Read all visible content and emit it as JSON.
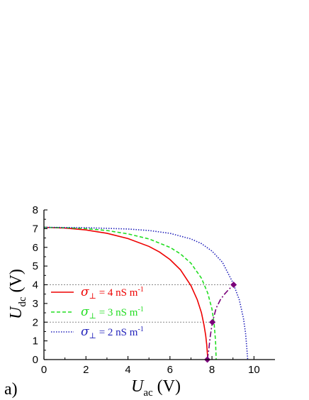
{
  "chart_data": {
    "type": "line",
    "panel_label": "a)",
    "xlabel": {
      "symbol": "U",
      "subscript": "ac",
      "unit": "(V)"
    },
    "ylabel": {
      "symbol": "U",
      "subscript": "dc",
      "unit": "(V)"
    },
    "xlim": [
      0,
      11
    ],
    "ylim": [
      0,
      8
    ],
    "xticks": [
      0,
      2,
      4,
      6,
      8,
      10
    ],
    "yticks": [
      0,
      1,
      2,
      3,
      4,
      5,
      6,
      7,
      8
    ],
    "grid": false,
    "legend_position": "bottom-left",
    "series": [
      {
        "name": "σ⊥ = 4 nS m-1",
        "legend": {
          "symbol": "σ",
          "subscript": "⊥",
          "text": " = 4 nS m",
          "superscript": "-1"
        },
        "color": "#ee0000",
        "style": "solid",
        "x": [
          0,
          1,
          2,
          3,
          4,
          5,
          5.5,
          6,
          6.5,
          7,
          7.3,
          7.5,
          7.62,
          7.7,
          7.75,
          7.78,
          7.8
        ],
        "y": [
          7.07,
          7.03,
          6.93,
          6.75,
          6.47,
          6.05,
          5.75,
          5.35,
          4.8,
          3.95,
          3.2,
          2.5,
          1.85,
          1.3,
          0.8,
          0.35,
          0
        ]
      },
      {
        "name": "σ⊥ = 3 nS m-1",
        "legend": {
          "symbol": "σ",
          "subscript": "⊥",
          "text": " = 3 nS m",
          "superscript": "-1"
        },
        "color": "#22dd22",
        "style": "dashed",
        "x": [
          0,
          1,
          2,
          3,
          4,
          5,
          6,
          6.5,
          7,
          7.5,
          7.8,
          8.0,
          8.1,
          8.17,
          8.2
        ],
        "y": [
          7.07,
          7.05,
          7.0,
          6.9,
          6.72,
          6.45,
          6.0,
          5.65,
          5.15,
          4.35,
          3.55,
          2.7,
          1.95,
          1.0,
          0
        ]
      },
      {
        "name": "σ⊥ = 2 nS m-1",
        "legend": {
          "symbol": "σ",
          "subscript": "⊥",
          "text": " = 2 nS m",
          "superscript": "-1"
        },
        "color": "#2222bb",
        "style": "dotted",
        "x": [
          0,
          2,
          4,
          5,
          6,
          7,
          7.5,
          8,
          8.5,
          9,
          9.3,
          9.5,
          9.6,
          9.66,
          9.7
        ],
        "y": [
          7.07,
          7.05,
          6.98,
          6.9,
          6.75,
          6.45,
          6.2,
          5.8,
          5.2,
          4.1,
          3.2,
          2.2,
          1.4,
          0.6,
          0
        ]
      },
      {
        "color": "#7a007a",
        "style": "dashdot",
        "markers": "diamond",
        "x": [
          7.78,
          7.85,
          7.92,
          8.02,
          8.2,
          8.4,
          8.6,
          8.8,
          9.03
        ],
        "y": [
          0,
          0.55,
          1.25,
          2.0,
          2.75,
          3.2,
          3.5,
          3.75,
          4.0
        ],
        "marker_points": [
          [
            7.78,
            0
          ],
          [
            8.02,
            2.0
          ],
          [
            9.03,
            4.0
          ]
        ]
      }
    ],
    "reference_lines": [
      {
        "orientation": "horizontal",
        "y": 2,
        "x": [
          0,
          8.02
        ],
        "color": "#888888",
        "style": "dotted"
      },
      {
        "orientation": "horizontal",
        "y": 4,
        "x": [
          0,
          9.03
        ],
        "color": "#888888",
        "style": "dotted"
      }
    ]
  }
}
